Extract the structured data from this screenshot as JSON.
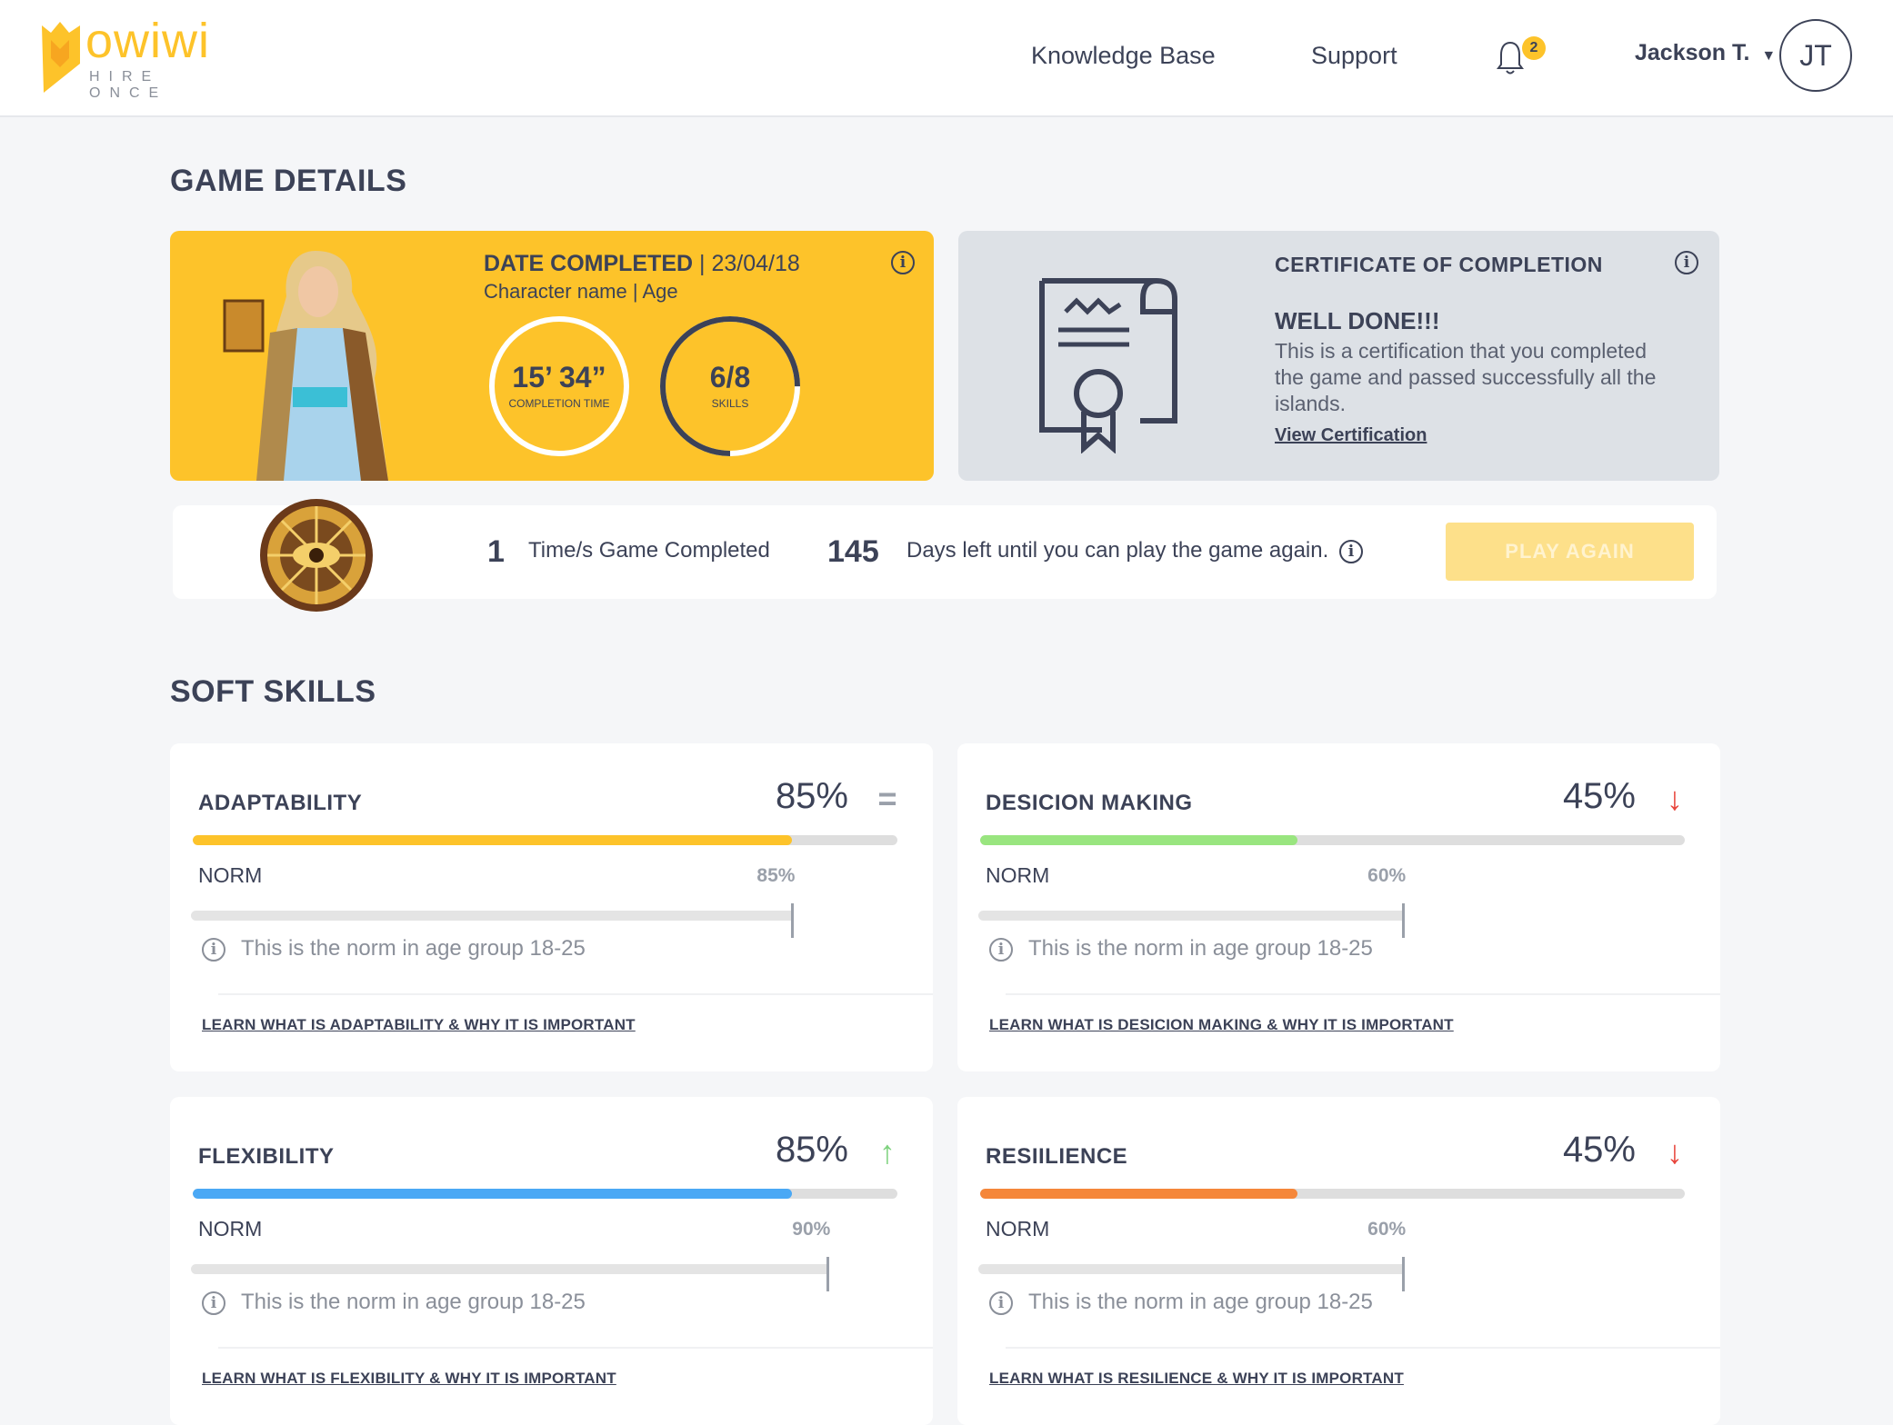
{
  "header": {
    "logo": {
      "brand": "owiwi",
      "tagline": "HIRE ONCE"
    },
    "nav": [
      {
        "label": "Knowledge Base"
      },
      {
        "label": "Support"
      }
    ],
    "notifications": {
      "icon": "bell-icon",
      "count": "2"
    },
    "user": {
      "name": "Jackson T.",
      "initials": "JT"
    }
  },
  "game_details": {
    "title": "GAME DETAILS",
    "summary": {
      "date_label": "DATE COMPLETED",
      "separator": "|",
      "date": "23/04/18",
      "character_line": "Character name | Age",
      "completion_time": {
        "value": "15’ 34”",
        "label": "COMPLETION TIME"
      },
      "skills": {
        "value": "6/8",
        "label": "SKILLS",
        "progress": 0.75
      }
    },
    "certificate": {
      "title": "CERTIFICATE OF COMPLETION",
      "heading": "WELL DONE!!!",
      "body": "This is a certification that you completed the game and passed successfully all the islands.",
      "link": "View Certification"
    },
    "stats": {
      "times_completed": "1",
      "times_label": "Time/s Game Completed",
      "days_left": "145",
      "days_label": "Days left until you can play the game again.",
      "play_again": "PLAY AGAIN"
    }
  },
  "soft_skills": {
    "title": "SOFT SKILLS",
    "norm_label": "NORM",
    "norm_note": "This is the norm in age group 18-25",
    "items": [
      {
        "name": "ADAPTABILITY",
        "percent": "85%",
        "value": 85,
        "norm": "85%",
        "norm_value": 85,
        "trend": "equal",
        "color": "#fdc32a",
        "link": "LEARN WHAT IS ADAPTABILITY & WHY IT IS IMPORTANT"
      },
      {
        "name": "DESICION MAKING",
        "percent": "45%",
        "value": 45,
        "norm": "60%",
        "norm_value": 60,
        "trend": "down",
        "color": "#99e57f",
        "link": "LEARN WHAT IS DESICION MAKING & WHY IT IS IMPORTANT"
      },
      {
        "name": "FLEXIBILITY",
        "percent": "85%",
        "value": 85,
        "norm": "90%",
        "norm_value": 90,
        "trend": "up",
        "color": "#4aa8f5",
        "link": "LEARN WHAT IS FLEXIBILITY & WHY IT IS IMPORTANT"
      },
      {
        "name": "RESIILIENCE",
        "percent": "45%",
        "value": 45,
        "norm": "60%",
        "norm_value": 60,
        "trend": "down",
        "color": "#f5873a",
        "link": "LEARN WHAT IS RESILIENCE & WHY IT IS IMPORTANT"
      }
    ]
  },
  "colors": {
    "accent": "#fdc32a",
    "text": "#3c4257",
    "trend_up": "#7ed27e",
    "trend_down": "#e8453c",
    "trend_equal": "#9aa0aa"
  }
}
